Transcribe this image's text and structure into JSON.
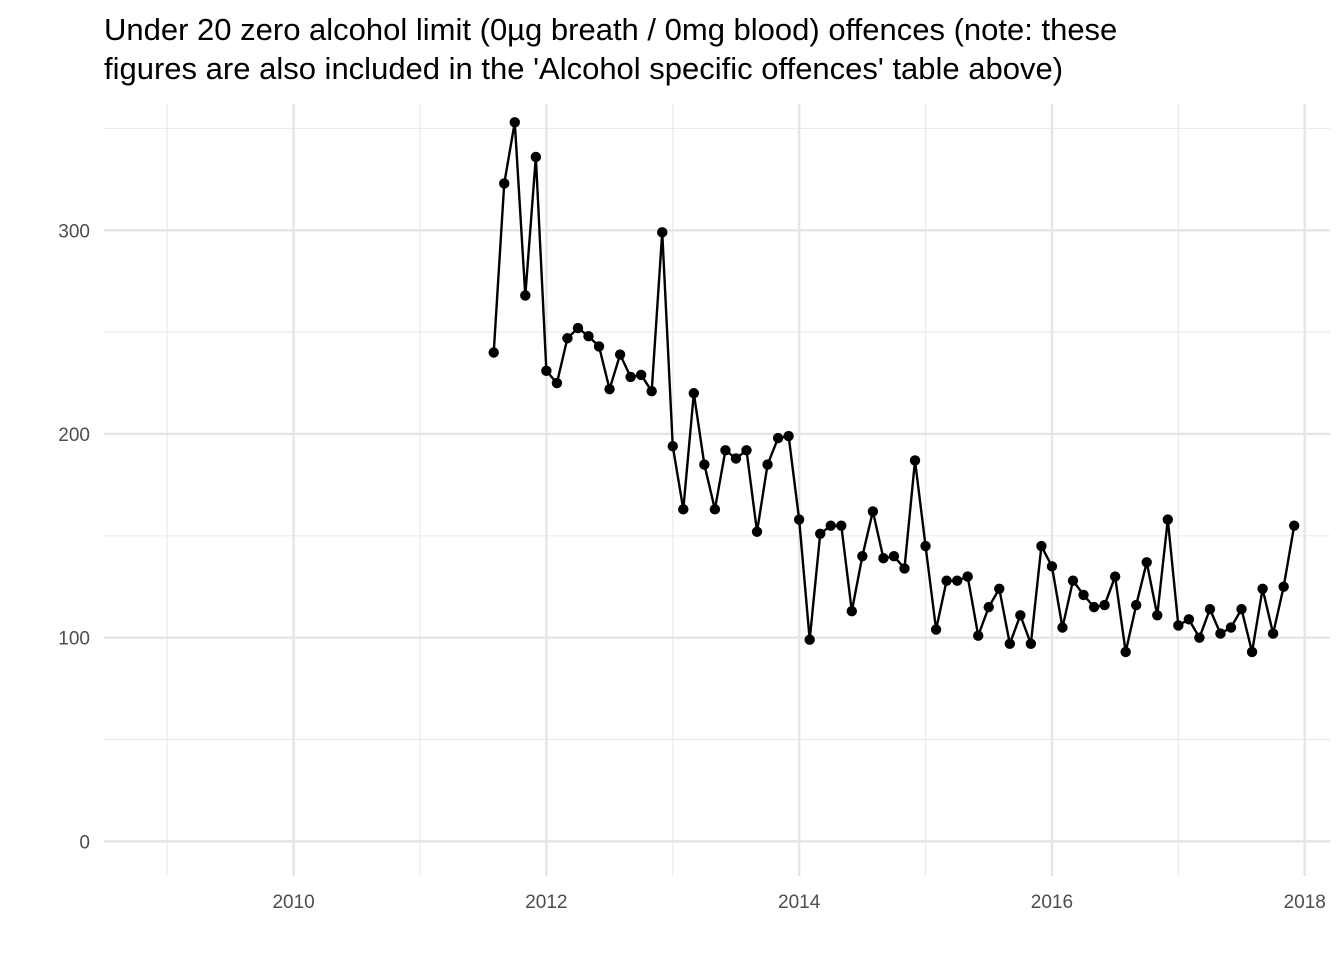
{
  "chart_data": {
    "type": "line",
    "title_lines": [
      "Under 20 zero alcohol limit (0µg breath / 0mg blood) offences (note: these",
      "figures are also included in the 'Alcohol specific offences' table above)"
    ],
    "xlabel": "",
    "ylabel": "",
    "xlim": [
      2008.5,
      2018.2
    ],
    "ylim": [
      -17,
      362
    ],
    "x_ticks": [
      2010,
      2012,
      2014,
      2016,
      2018
    ],
    "x_tick_labels": [
      "2010",
      "2012",
      "2014",
      "2016",
      "2018"
    ],
    "y_ticks": [
      0,
      100,
      200,
      300
    ],
    "y_tick_labels": [
      "0",
      "100",
      "200",
      "300"
    ],
    "grid": true,
    "legend": "none",
    "series": [
      {
        "color": "#000000",
        "markers": true,
        "points": [
          {
            "x": "2011-08",
            "y": 240
          },
          {
            "x": "2011-09",
            "y": 323
          },
          {
            "x": "2011-10",
            "y": 353
          },
          {
            "x": "2011-11",
            "y": 268
          },
          {
            "x": "2011-12",
            "y": 336
          },
          {
            "x": "2012-01",
            "y": 231
          },
          {
            "x": "2012-02",
            "y": 225
          },
          {
            "x": "2012-03",
            "y": 247
          },
          {
            "x": "2012-04",
            "y": 252
          },
          {
            "x": "2012-05",
            "y": 248
          },
          {
            "x": "2012-06",
            "y": 243
          },
          {
            "x": "2012-07",
            "y": 222
          },
          {
            "x": "2012-08",
            "y": 239
          },
          {
            "x": "2012-09",
            "y": 228
          },
          {
            "x": "2012-10",
            "y": 229
          },
          {
            "x": "2012-11",
            "y": 221
          },
          {
            "x": "2012-12",
            "y": 299
          },
          {
            "x": "2013-01",
            "y": 194
          },
          {
            "x": "2013-02",
            "y": 163
          },
          {
            "x": "2013-03",
            "y": 220
          },
          {
            "x": "2013-04",
            "y": 185
          },
          {
            "x": "2013-05",
            "y": 163
          },
          {
            "x": "2013-06",
            "y": 192
          },
          {
            "x": "2013-07",
            "y": 188
          },
          {
            "x": "2013-08",
            "y": 192
          },
          {
            "x": "2013-09",
            "y": 152
          },
          {
            "x": "2013-10",
            "y": 185
          },
          {
            "x": "2013-11",
            "y": 198
          },
          {
            "x": "2013-12",
            "y": 199
          },
          {
            "x": "2014-01",
            "y": 158
          },
          {
            "x": "2014-02",
            "y": 99
          },
          {
            "x": "2014-03",
            "y": 151
          },
          {
            "x": "2014-04",
            "y": 155
          },
          {
            "x": "2014-05",
            "y": 155
          },
          {
            "x": "2014-06",
            "y": 113
          },
          {
            "x": "2014-07",
            "y": 140
          },
          {
            "x": "2014-08",
            "y": 162
          },
          {
            "x": "2014-09",
            "y": 139
          },
          {
            "x": "2014-10",
            "y": 140
          },
          {
            "x": "2014-11",
            "y": 134
          },
          {
            "x": "2014-12",
            "y": 187
          },
          {
            "x": "2015-01",
            "y": 145
          },
          {
            "x": "2015-02",
            "y": 104
          },
          {
            "x": "2015-03",
            "y": 128
          },
          {
            "x": "2015-04",
            "y": 128
          },
          {
            "x": "2015-05",
            "y": 130
          },
          {
            "x": "2015-06",
            "y": 101
          },
          {
            "x": "2015-07",
            "y": 115
          },
          {
            "x": "2015-08",
            "y": 124
          },
          {
            "x": "2015-09",
            "y": 97
          },
          {
            "x": "2015-10",
            "y": 111
          },
          {
            "x": "2015-11",
            "y": 97
          },
          {
            "x": "2015-12",
            "y": 145
          },
          {
            "x": "2016-01",
            "y": 135
          },
          {
            "x": "2016-02",
            "y": 105
          },
          {
            "x": "2016-03",
            "y": 128
          },
          {
            "x": "2016-04",
            "y": 121
          },
          {
            "x": "2016-05",
            "y": 115
          },
          {
            "x": "2016-06",
            "y": 116
          },
          {
            "x": "2016-07",
            "y": 130
          },
          {
            "x": "2016-08",
            "y": 93
          },
          {
            "x": "2016-09",
            "y": 116
          },
          {
            "x": "2016-10",
            "y": 137
          },
          {
            "x": "2016-11",
            "y": 111
          },
          {
            "x": "2016-12",
            "y": 158
          },
          {
            "x": "2017-01",
            "y": 106
          },
          {
            "x": "2017-02",
            "y": 109
          },
          {
            "x": "2017-03",
            "y": 100
          },
          {
            "x": "2017-04",
            "y": 114
          },
          {
            "x": "2017-05",
            "y": 102
          },
          {
            "x": "2017-06",
            "y": 105
          },
          {
            "x": "2017-07",
            "y": 114
          },
          {
            "x": "2017-08",
            "y": 93
          },
          {
            "x": "2017-09",
            "y": 124
          },
          {
            "x": "2017-10",
            "y": 102
          },
          {
            "x": "2017-11",
            "y": 125
          },
          {
            "x": "2017-12",
            "y": 155
          }
        ]
      }
    ]
  }
}
